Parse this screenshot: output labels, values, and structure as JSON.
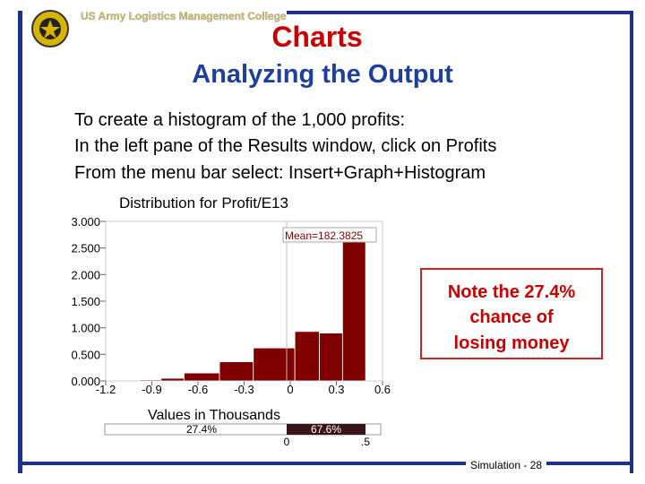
{
  "header": {
    "college": "US Army Logistics Management College",
    "title": "Charts",
    "subtitle": "Analyzing the Output"
  },
  "body": {
    "lines": [
      "To create a histogram of the 1,000 profits:",
      "In the left pane of the Results window, click on Profits",
      "From the menu bar select: Insert+Graph+Histogram"
    ]
  },
  "chart_data": {
    "type": "histogram",
    "title": "Distribution for Profit/E13",
    "x_label": "Values in Thousands",
    "annotation": "Mean=182.3825",
    "bins": [
      -0.98,
      -0.84,
      -0.69,
      -0.46,
      -0.24,
      0.03,
      0.19,
      0.34,
      0.49
    ],
    "values": [
      0.02,
      0.05,
      0.15,
      0.36,
      0.62,
      0.93,
      0.9,
      2.65
    ],
    "color": "#800000",
    "xlim": [
      -1.2,
      0.6
    ],
    "xticks": [
      -1.2,
      -0.9,
      -0.6,
      -0.3,
      0,
      0.3,
      0.6
    ],
    "ylim": [
      0,
      3
    ],
    "yticks": [
      {
        "value": 0,
        "label": "0.000"
      },
      {
        "value": 0.5,
        "label": "0.500"
      },
      {
        "value": 1,
        "label": "1.000"
      },
      {
        "value": 1.5,
        "label": "1.500"
      },
      {
        "value": 2,
        "label": "2.000"
      },
      {
        "value": 2.5,
        "label": "2.500"
      },
      {
        "value": 3,
        "label": "3.000"
      }
    ],
    "delimiters": {
      "left_pct": "27.4%",
      "middle_pct": "67.6%",
      "left_value": "0",
      "right_value": ".5"
    }
  },
  "note": {
    "lines": [
      "Note the 27.4%",
      "chance of",
      "losing money"
    ]
  },
  "footer": {
    "page": "Simulation - 28"
  }
}
